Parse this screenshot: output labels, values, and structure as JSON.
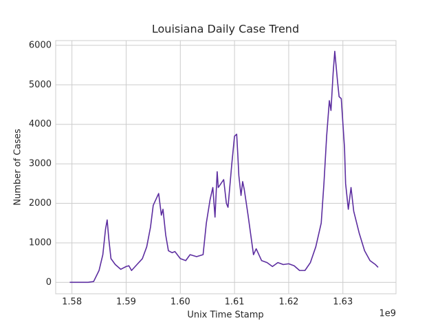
{
  "chart_data": {
    "type": "line",
    "title": "Louisiana Daily Case Trend",
    "x_label": "Unix Time Stamp",
    "y_label": "Number of Cases",
    "x_offset_label": "1e9",
    "x": [
      1.5796,
      1.583,
      1.584,
      1.585,
      1.5857,
      1.5862,
      1.5865,
      1.5868,
      1.5872,
      1.588,
      1.589,
      1.59,
      1.5905,
      1.591,
      1.592,
      1.593,
      1.5938,
      1.5945,
      1.595,
      1.5955,
      1.596,
      1.5965,
      1.5968,
      1.5973,
      1.5978,
      1.5985,
      1.599,
      1.6,
      1.601,
      1.6018,
      1.603,
      1.6042,
      1.6048,
      1.6055,
      1.606,
      1.6064,
      1.6068,
      1.607,
      1.608,
      1.6085,
      1.6088,
      1.6095,
      1.61,
      1.6104,
      1.6106,
      1.6108,
      1.6112,
      1.6115,
      1.6118,
      1.6125,
      1.613,
      1.6135,
      1.614,
      1.615,
      1.616,
      1.617,
      1.618,
      1.619,
      1.62,
      1.621,
      1.622,
      1.623,
      1.624,
      1.625,
      1.626,
      1.6265,
      1.627,
      1.6275,
      1.6278,
      1.6282,
      1.6285,
      1.629,
      1.6293,
      1.6297,
      1.6303,
      1.6305,
      1.631,
      1.6315,
      1.632,
      1.633,
      1.634,
      1.635,
      1.636,
      1.6365
    ],
    "series": [
      {
        "color": "#5b2c9f",
        "values": [
          0,
          0,
          20,
          300,
          700,
          1350,
          1580,
          1100,
          600,
          450,
          330,
          400,
          420,
          300,
          450,
          600,
          900,
          1400,
          1950,
          2100,
          2250,
          1700,
          1850,
          1200,
          800,
          750,
          780,
          600,
          550,
          700,
          650,
          700,
          1500,
          2100,
          2400,
          1650,
          2800,
          2400,
          2600,
          2000,
          1900,
          3000,
          3700,
          3750,
          3250,
          2700,
          2200,
          2550,
          2350,
          1700,
          1200,
          700,
          850,
          550,
          500,
          400,
          500,
          450,
          470,
          420,
          300,
          300,
          500,
          900,
          1500,
          2500,
          3700,
          4600,
          4350,
          5300,
          5850,
          5100,
          4700,
          4650,
          3400,
          2500,
          1850,
          2400,
          1800,
          1250,
          800,
          550,
          450,
          380
        ]
      }
    ],
    "xlim": [
      1.577,
      1.6398
    ],
    "ylim": [
      -290,
      6120
    ],
    "xticks": [
      1.58,
      1.59,
      {
        "value": 1.6,
        "label": "1.60"
      },
      1.61,
      1.62,
      1.63
    ],
    "yticks": [
      0,
      1000,
      2000,
      3000,
      4000,
      5000,
      6000
    ],
    "grid": true
  }
}
